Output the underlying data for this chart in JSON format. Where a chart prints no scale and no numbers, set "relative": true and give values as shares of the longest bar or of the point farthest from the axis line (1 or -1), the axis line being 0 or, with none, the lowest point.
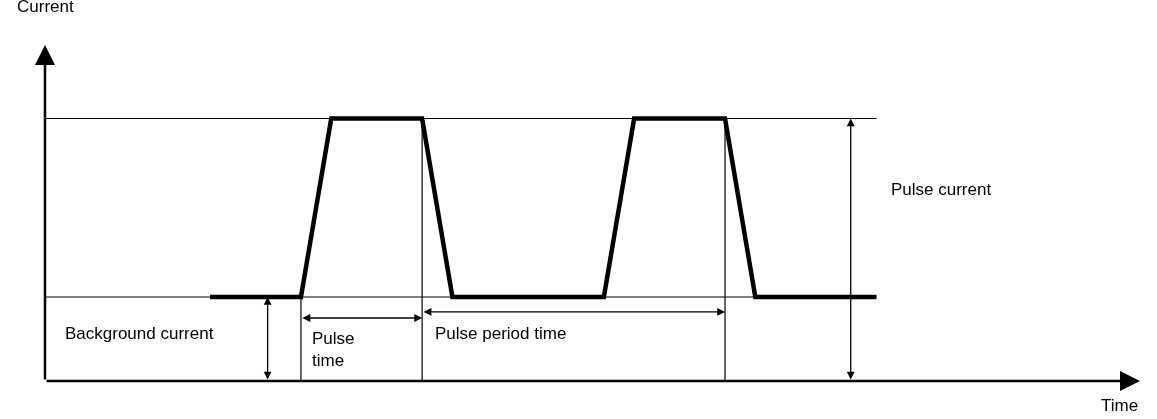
{
  "chart_data": {
    "type": "line",
    "relative": true,
    "grid": false,
    "marker": "none",
    "line_style": "solid",
    "categories": [
      null,
      null,
      null,
      null,
      null,
      null,
      null,
      null,
      null,
      null,
      null,
      null,
      null,
      null,
      null,
      null,
      null,
      null,
      null,
      null,
      null,
      null,
      null
    ],
    "series": [
      {
        "color": "#000000",
        "values": [
          0.32,
          null,
          null,
          0.32,
          1,
          null,
          null,
          1,
          0.32,
          null,
          null,
          null,
          null,
          0.32,
          1,
          null,
          null,
          1,
          0.32,
          null,
          null,
          null,
          0.32
        ]
      }
    ],
    "annotations": [
      "Pulse current",
      "Background current",
      "Pulse\ntime",
      "Pulse period time",
      "Current",
      "Time"
    ]
  }
}
